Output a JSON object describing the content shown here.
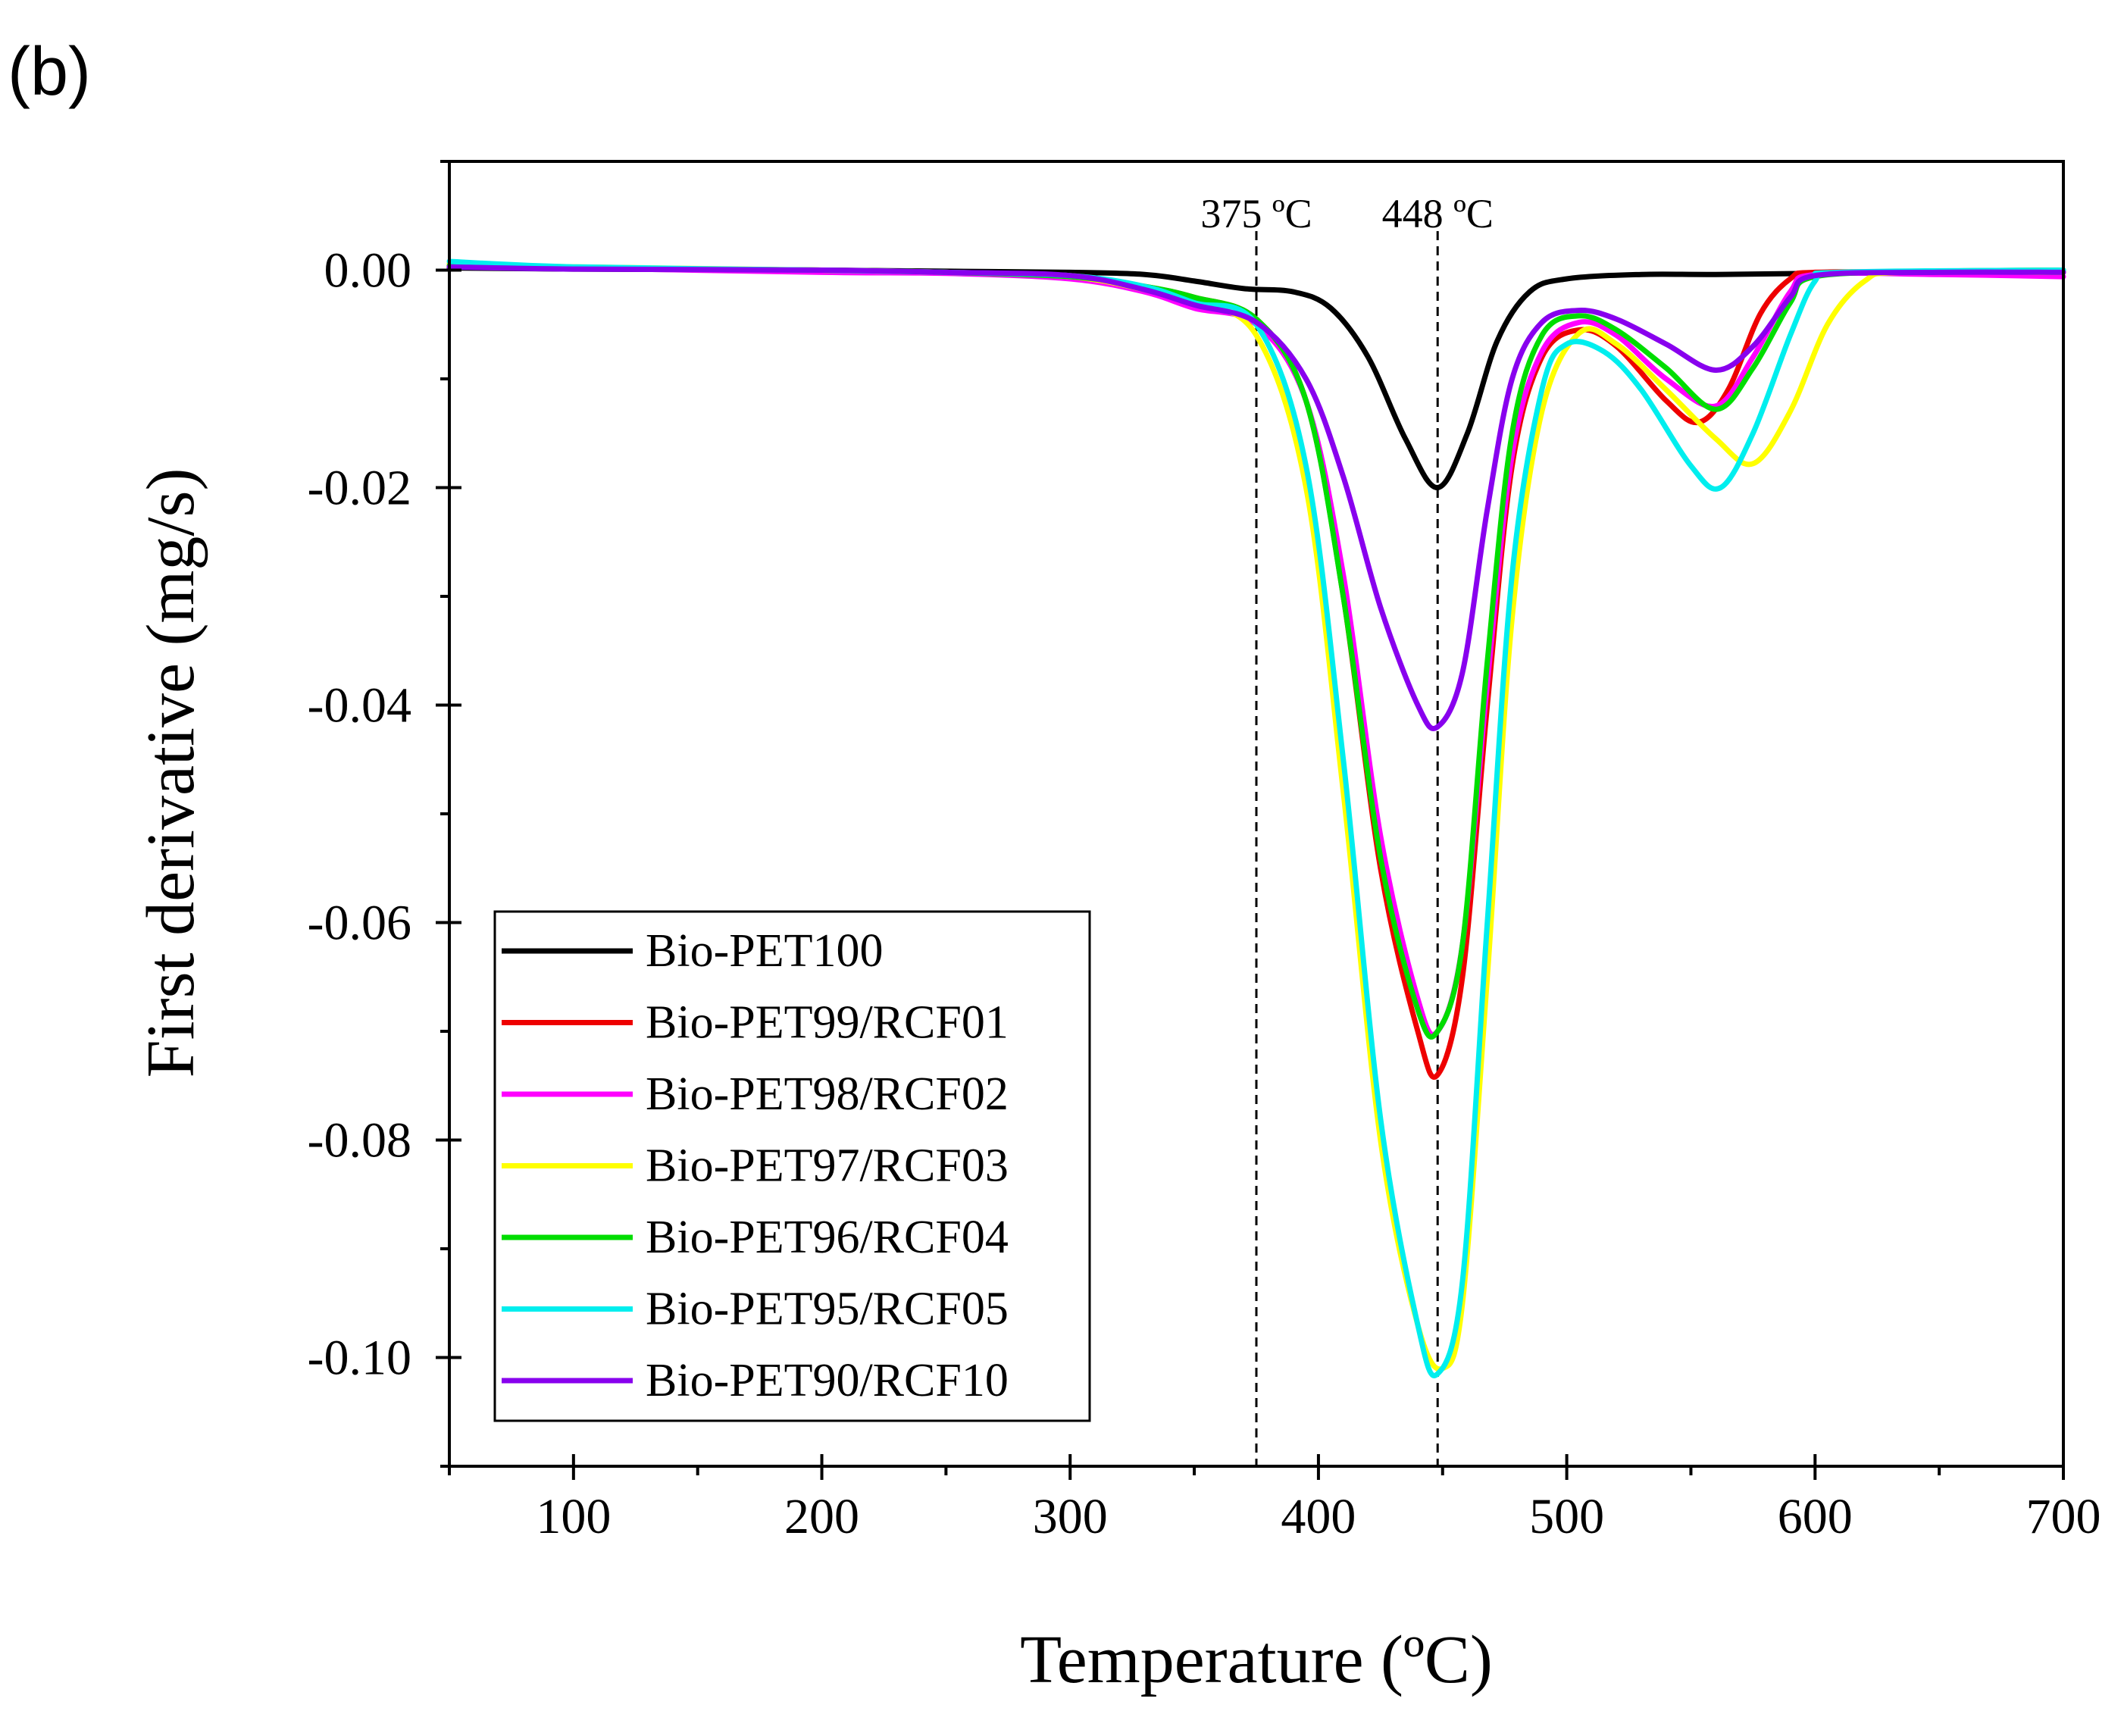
{
  "panel_label": "(b)",
  "chart_data": {
    "type": "line",
    "xlabel": "Temperature (ºC)",
    "ylabel": "First derivative (mg/s)",
    "xlim": [
      50,
      700
    ],
    "ylim": [
      -0.11,
      0.01
    ],
    "x_ticks": [
      100,
      200,
      300,
      400,
      500,
      600,
      700
    ],
    "x_tick_labels": [
      "100",
      "200",
      "300",
      "400",
      "500",
      "600",
      "700"
    ],
    "y_ticks": [
      0.0,
      -0.02,
      -0.04,
      -0.06,
      -0.08,
      -0.1
    ],
    "y_tick_labels": [
      "0.00",
      "-0.02",
      "-0.04",
      "-0.06",
      "-0.08",
      "-0.10"
    ],
    "reference_lines": [
      {
        "x": 375,
        "label": "375 ºC"
      },
      {
        "x": 448,
        "label": "448 ºC"
      }
    ],
    "legend_position": "bottom-left",
    "series": [
      {
        "name": "Bio-PET100",
        "color": "#000000",
        "points": [
          [
            50,
            0.0002
          ],
          [
            100,
            0.0001
          ],
          [
            200,
            0.0
          ],
          [
            250,
            -0.0001
          ],
          [
            300,
            -0.0002
          ],
          [
            330,
            -0.0004
          ],
          [
            350,
            -0.001
          ],
          [
            370,
            -0.0017
          ],
          [
            390,
            -0.002
          ],
          [
            405,
            -0.0035
          ],
          [
            420,
            -0.008
          ],
          [
            435,
            -0.0155
          ],
          [
            448,
            -0.02
          ],
          [
            460,
            -0.015
          ],
          [
            472,
            -0.0065
          ],
          [
            485,
            -0.002
          ],
          [
            500,
            -0.0008
          ],
          [
            530,
            -0.0004
          ],
          [
            560,
            -0.0004
          ],
          [
            600,
            -0.0003
          ],
          [
            650,
            -0.0002
          ],
          [
            700,
            -0.0002
          ]
        ]
      },
      {
        "name": "Bio-PET99/RCF01",
        "color": "#ee0000",
        "points": [
          [
            50,
            0.0004
          ],
          [
            100,
            0.0002
          ],
          [
            200,
            0.0
          ],
          [
            250,
            -0.0002
          ],
          [
            300,
            -0.0005
          ],
          [
            330,
            -0.0015
          ],
          [
            350,
            -0.0025
          ],
          [
            375,
            -0.0045
          ],
          [
            395,
            -0.012
          ],
          [
            410,
            -0.03
          ],
          [
            425,
            -0.055
          ],
          [
            440,
            -0.07
          ],
          [
            448,
            -0.074
          ],
          [
            458,
            -0.065
          ],
          [
            468,
            -0.04
          ],
          [
            478,
            -0.018
          ],
          [
            490,
            -0.008
          ],
          [
            505,
            -0.0055
          ],
          [
            520,
            -0.007
          ],
          [
            540,
            -0.012
          ],
          [
            553,
            -0.014
          ],
          [
            565,
            -0.011
          ],
          [
            578,
            -0.004
          ],
          [
            590,
            -0.0008
          ],
          [
            600,
            -0.0002
          ],
          [
            650,
            -0.0002
          ],
          [
            700,
            -0.0002
          ]
        ]
      },
      {
        "name": "Bio-PET98/RCF02",
        "color": "#ff00ff",
        "points": [
          [
            50,
            0.0004
          ],
          [
            100,
            0.0002
          ],
          [
            200,
            -0.0002
          ],
          [
            250,
            -0.0003
          ],
          [
            300,
            -0.0008
          ],
          [
            330,
            -0.002
          ],
          [
            350,
            -0.0035
          ],
          [
            375,
            -0.005
          ],
          [
            395,
            -0.012
          ],
          [
            410,
            -0.028
          ],
          [
            425,
            -0.052
          ],
          [
            440,
            -0.067
          ],
          [
            448,
            -0.07
          ],
          [
            458,
            -0.062
          ],
          [
            468,
            -0.038
          ],
          [
            478,
            -0.017
          ],
          [
            490,
            -0.0075
          ],
          [
            505,
            -0.0048
          ],
          [
            520,
            -0.006
          ],
          [
            540,
            -0.01
          ],
          [
            560,
            -0.0125
          ],
          [
            575,
            -0.008
          ],
          [
            590,
            -0.002
          ],
          [
            600,
            -0.0004
          ],
          [
            650,
            -0.0004
          ],
          [
            700,
            -0.0006
          ]
        ]
      },
      {
        "name": "Bio-PET97/RCF03",
        "color": "#ffff00",
        "points": [
          [
            50,
            0.0006
          ],
          [
            100,
            0.0003
          ],
          [
            200,
            0.0
          ],
          [
            250,
            -0.0002
          ],
          [
            300,
            -0.0006
          ],
          [
            330,
            -0.0018
          ],
          [
            350,
            -0.003
          ],
          [
            375,
            -0.006
          ],
          [
            395,
            -0.02
          ],
          [
            410,
            -0.048
          ],
          [
            425,
            -0.08
          ],
          [
            440,
            -0.097
          ],
          [
            450,
            -0.101
          ],
          [
            458,
            -0.095
          ],
          [
            468,
            -0.065
          ],
          [
            478,
            -0.032
          ],
          [
            490,
            -0.013
          ],
          [
            505,
            -0.0058
          ],
          [
            520,
            -0.0068
          ],
          [
            540,
            -0.011
          ],
          [
            560,
            -0.0155
          ],
          [
            575,
            -0.0178
          ],
          [
            590,
            -0.013
          ],
          [
            605,
            -0.005
          ],
          [
            620,
            -0.001
          ],
          [
            635,
            -0.0002
          ],
          [
            700,
            -0.0002
          ]
        ]
      },
      {
        "name": "Bio-PET96/RCF04",
        "color": "#00dd00",
        "points": [
          [
            50,
            0.0004
          ],
          [
            100,
            0.0002
          ],
          [
            200,
            0.0
          ],
          [
            250,
            -0.0002
          ],
          [
            300,
            -0.0006
          ],
          [
            330,
            -0.0015
          ],
          [
            350,
            -0.0025
          ],
          [
            375,
            -0.0045
          ],
          [
            395,
            -0.012
          ],
          [
            410,
            -0.03
          ],
          [
            425,
            -0.054
          ],
          [
            440,
            -0.068
          ],
          [
            448,
            -0.07
          ],
          [
            458,
            -0.062
          ],
          [
            468,
            -0.036
          ],
          [
            478,
            -0.015
          ],
          [
            490,
            -0.006
          ],
          [
            505,
            -0.0042
          ],
          [
            520,
            -0.0055
          ],
          [
            540,
            -0.009
          ],
          [
            560,
            -0.0128
          ],
          [
            575,
            -0.009
          ],
          [
            590,
            -0.003
          ],
          [
            600,
            -0.0006
          ],
          [
            650,
            -0.0001
          ],
          [
            700,
            0.0
          ]
        ]
      },
      {
        "name": "Bio-PET95/RCF05",
        "color": "#00eeee",
        "points": [
          [
            50,
            0.0008
          ],
          [
            100,
            0.0003
          ],
          [
            200,
            0.0
          ],
          [
            250,
            -0.0002
          ],
          [
            300,
            -0.0005
          ],
          [
            330,
            -0.0015
          ],
          [
            350,
            -0.003
          ],
          [
            375,
            -0.005
          ],
          [
            395,
            -0.018
          ],
          [
            410,
            -0.045
          ],
          [
            425,
            -0.078
          ],
          [
            440,
            -0.097
          ],
          [
            448,
            -0.1015
          ],
          [
            458,
            -0.093
          ],
          [
            468,
            -0.06
          ],
          [
            478,
            -0.028
          ],
          [
            490,
            -0.011
          ],
          [
            500,
            -0.0068
          ],
          [
            515,
            -0.0075
          ],
          [
            530,
            -0.011
          ],
          [
            550,
            -0.018
          ],
          [
            562,
            -0.02
          ],
          [
            575,
            -0.015
          ],
          [
            590,
            -0.006
          ],
          [
            600,
            -0.001
          ],
          [
            610,
            -0.0002
          ],
          [
            700,
            0.0
          ]
        ]
      },
      {
        "name": "Bio-PET90/RCF10",
        "color": "#8800ee",
        "points": [
          [
            50,
            0.0003
          ],
          [
            100,
            0.0001
          ],
          [
            200,
            0.0
          ],
          [
            250,
            -0.0002
          ],
          [
            300,
            -0.0005
          ],
          [
            330,
            -0.0018
          ],
          [
            350,
            -0.0032
          ],
          [
            375,
            -0.0048
          ],
          [
            395,
            -0.01
          ],
          [
            410,
            -0.019
          ],
          [
            425,
            -0.031
          ],
          [
            440,
            -0.04
          ],
          [
            448,
            -0.042
          ],
          [
            458,
            -0.037
          ],
          [
            468,
            -0.022
          ],
          [
            478,
            -0.01
          ],
          [
            490,
            -0.0048
          ],
          [
            505,
            -0.0037
          ],
          [
            520,
            -0.0045
          ],
          [
            540,
            -0.0068
          ],
          [
            560,
            -0.0092
          ],
          [
            575,
            -0.007
          ],
          [
            590,
            -0.0025
          ],
          [
            600,
            -0.0005
          ],
          [
            650,
            -0.0002
          ],
          [
            700,
            -0.0002
          ]
        ]
      }
    ]
  }
}
